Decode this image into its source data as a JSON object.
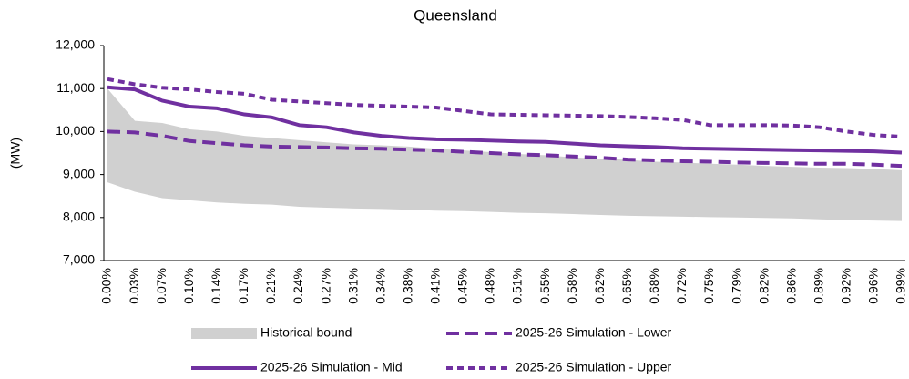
{
  "chart_data": {
    "type": "line",
    "title": "Queensland",
    "y_label": "(MW)",
    "categories": [
      "0.00%",
      "0.03%",
      "0.07%",
      "0.10%",
      "0.14%",
      "0.17%",
      "0.21%",
      "0.24%",
      "0.27%",
      "0.31%",
      "0.34%",
      "0.38%",
      "0.41%",
      "0.45%",
      "0.48%",
      "0.51%",
      "0.55%",
      "0.58%",
      "0.62%",
      "0.65%",
      "0.68%",
      "0.72%",
      "0.75%",
      "0.79%",
      "0.82%",
      "0.86%",
      "0.89%",
      "0.92%",
      "0.96%",
      "0.99%"
    ],
    "ylim": [
      7000,
      12000
    ],
    "yticks": [
      {
        "value": 7000,
        "label": "7,000"
      },
      {
        "value": 8000,
        "label": "8,000"
      },
      {
        "value": 9000,
        "label": "9,000"
      },
      {
        "value": 10000,
        "label": "10,000"
      },
      {
        "value": 11000,
        "label": "11,000"
      },
      {
        "value": 12000,
        "label": "12,000"
      }
    ],
    "series": [
      {
        "name": "Historical bound",
        "color": "#d0d0d0",
        "kind": "band",
        "high": [
          11000,
          10250,
          10200,
          10050,
          10000,
          9900,
          9850,
          9800,
          9750,
          9700,
          9680,
          9650,
          9600,
          9560,
          9520,
          9480,
          9450,
          9400,
          9370,
          9340,
          9300,
          9280,
          9250,
          9230,
          9200,
          9180,
          9160,
          9150,
          9130,
          9100
        ],
        "low": [
          8820,
          8600,
          8450,
          8400,
          8350,
          8320,
          8300,
          8250,
          8230,
          8210,
          8200,
          8180,
          8160,
          8150,
          8130,
          8110,
          8100,
          8080,
          8060,
          8040,
          8030,
          8020,
          8010,
          8000,
          7990,
          7980,
          7960,
          7940,
          7930,
          7920
        ]
      },
      {
        "name": "2025-26 Simulation - Lower",
        "color": "#7030a0",
        "dash": "long",
        "values": [
          10000,
          9980,
          9900,
          9780,
          9730,
          9680,
          9650,
          9640,
          9630,
          9610,
          9600,
          9580,
          9560,
          9530,
          9500,
          9470,
          9450,
          9420,
          9390,
          9350,
          9330,
          9310,
          9300,
          9280,
          9270,
          9260,
          9250,
          9250,
          9230,
          9200
        ]
      },
      {
        "name": "2025-26 Simulation - Mid",
        "color": "#7030a0",
        "dash": "solid",
        "values": [
          11030,
          10980,
          10720,
          10580,
          10540,
          10400,
          10330,
          10150,
          10100,
          9980,
          9900,
          9850,
          9820,
          9810,
          9790,
          9770,
          9760,
          9720,
          9680,
          9660,
          9640,
          9610,
          9600,
          9590,
          9580,
          9570,
          9560,
          9550,
          9540,
          9510
        ]
      },
      {
        "name": "2025-26 Simulation - Upper",
        "color": "#7030a0",
        "dash": "short",
        "values": [
          11220,
          11100,
          11020,
          10980,
          10920,
          10880,
          10740,
          10700,
          10660,
          10620,
          10600,
          10580,
          10560,
          10480,
          10400,
          10390,
          10380,
          10370,
          10360,
          10340,
          10310,
          10270,
          10150,
          10150,
          10150,
          10140,
          10100,
          10000,
          9920,
          9880
        ]
      }
    ]
  }
}
